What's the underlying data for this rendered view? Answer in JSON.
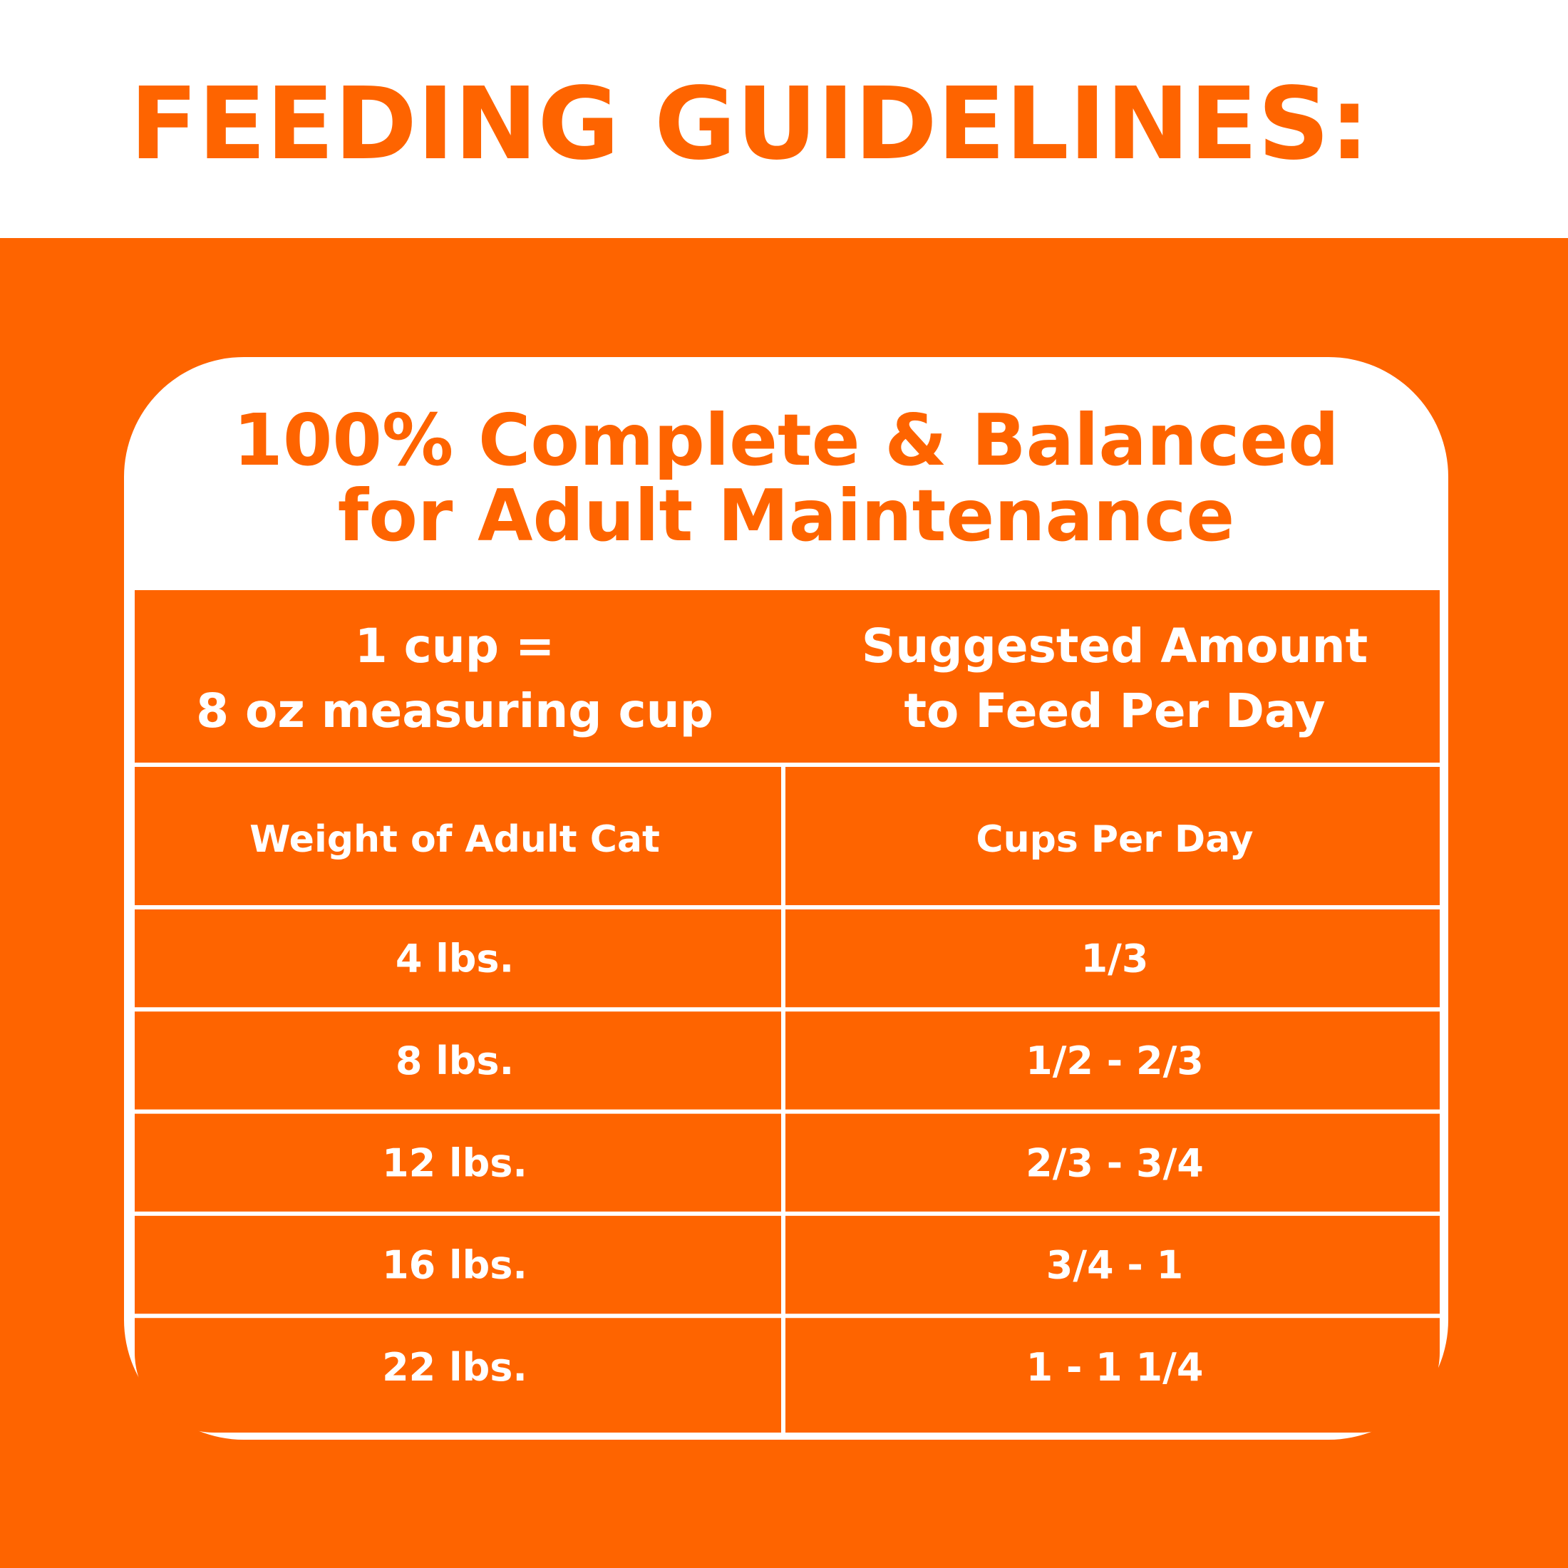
{
  "title": "FEEDING GUIDELINES:",
  "card": {
    "heading": [
      "100% Complete & Balanced",
      "for Adult Maintenance"
    ]
  },
  "table": {
    "header": [
      [
        "1 cup =",
        "8 oz measuring cup"
      ],
      [
        "Suggested Amount",
        "to Feed Per Day"
      ]
    ],
    "columns": [
      "Weight of Adult Cat",
      "Cups Per Day"
    ],
    "rows": [
      [
        "4 lbs.",
        "1/3"
      ],
      [
        "8 lbs.",
        "1/2 - 2/3"
      ],
      [
        "12 lbs.",
        "2/3 - 3/4"
      ],
      [
        "16 lbs.",
        "3/4 - 1"
      ],
      [
        "22 lbs.",
        "1 - 1 1/4"
      ]
    ]
  }
}
